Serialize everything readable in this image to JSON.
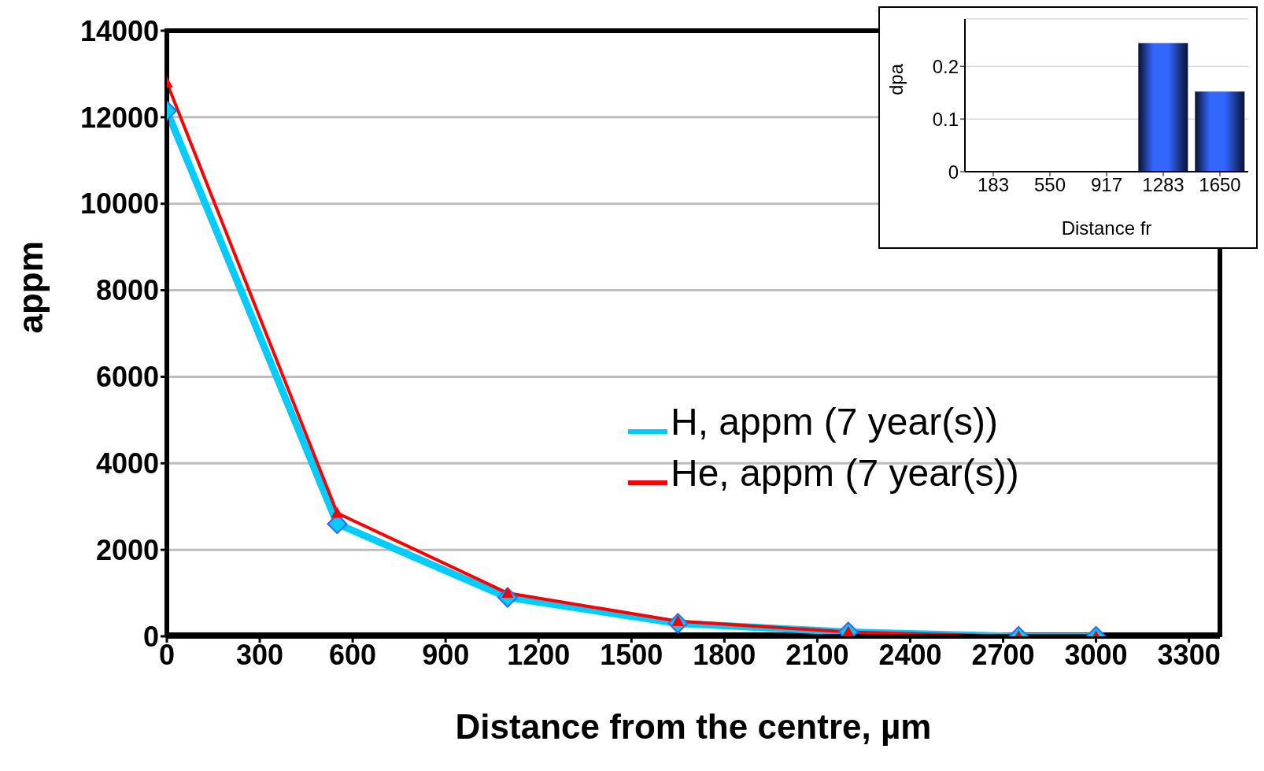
{
  "chart_data": [
    {
      "type": "line",
      "xlabel": "Distance from the centre, µm",
      "ylabel": "appm",
      "xlim": [
        0,
        3400
      ],
      "xticks": [
        0,
        300,
        600,
        900,
        1200,
        1500,
        1800,
        2100,
        2400,
        2700,
        3000,
        3300
      ],
      "ylim": [
        0,
        14000
      ],
      "yticks": [
        0,
        2000,
        4000,
        6000,
        8000,
        10000,
        12000,
        14000
      ],
      "grid": "y",
      "legend": "right",
      "x": [
        0,
        550,
        1100,
        1650,
        2200,
        2750,
        3000
      ],
      "series": [
        {
          "name": "H, appm (7 year(s))",
          "color": "#00ccff",
          "marker": "diamond",
          "values": [
            12150,
            2600,
            900,
            300,
            100,
            0,
            0
          ]
        },
        {
          "name": "He, appm (7 year(s))",
          "color": "#ff0000",
          "marker": "triangle",
          "values": [
            12800,
            2850,
            1000,
            350,
            100,
            0,
            0
          ]
        }
      ]
    },
    {
      "type": "bar",
      "xlabel": "Distance fr",
      "ylabel": "dpa",
      "categories": [
        "183",
        "550",
        "917",
        "1283",
        "1650"
      ],
      "values": [
        null,
        null,
        null,
        0.244,
        0.152
      ],
      "color": "#3366ff",
      "ylim": [
        0,
        0.29
      ],
      "yticks": [
        0,
        0.1,
        0.2
      ],
      "grid": "y"
    }
  ]
}
